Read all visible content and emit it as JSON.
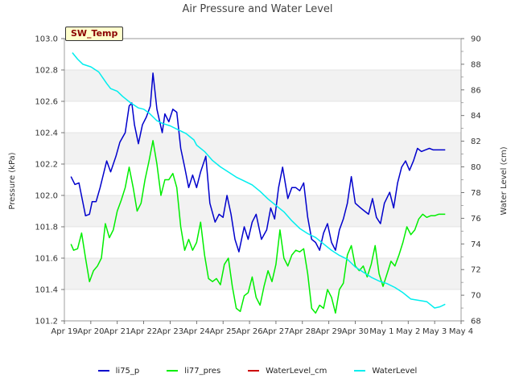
{
  "chart_data": {
    "type": "line",
    "title": "Air Pressure and Water Level",
    "site_label": "SW_Temp",
    "ylabel_left": "Pressure (kPa)",
    "ylabel_right": "Water Level (cm)",
    "ylim_left": [
      101.2,
      103.0
    ],
    "ylim_right": [
      68,
      90
    ],
    "yticks_left": [
      "101.2",
      "101.4",
      "101.6",
      "101.8",
      "102.0",
      "102.2",
      "102.4",
      "102.6",
      "102.8",
      "103.0"
    ],
    "yticks_right": [
      "68",
      "70",
      "72",
      "74",
      "76",
      "78",
      "80",
      "82",
      "84",
      "86",
      "88",
      "90"
    ],
    "xlim": [
      0,
      15
    ],
    "xticks": [
      "Apr 19",
      "Apr 20",
      "Apr 21",
      "Apr 22",
      "Apr 23",
      "Apr 24",
      "Apr 25",
      "Apr 26",
      "Apr 27",
      "Apr 28",
      "Apr 29",
      "Apr 30",
      "May 1",
      "May 2",
      "May 3",
      "May 4"
    ],
    "grid": true,
    "legend_position": "bottom",
    "series": [
      {
        "name": "li75_p",
        "axis": "left",
        "color": "#0000cc",
        "x": [
          0.25,
          0.4,
          0.55,
          0.8,
          0.95,
          1.05,
          1.2,
          1.35,
          1.6,
          1.75,
          1.95,
          2.1,
          2.3,
          2.45,
          2.55,
          2.65,
          2.8,
          2.95,
          3.1,
          3.25,
          3.35,
          3.5,
          3.7,
          3.8,
          3.95,
          4.1,
          4.25,
          4.4,
          4.55,
          4.7,
          4.85,
          5.0,
          5.15,
          5.35,
          5.5,
          5.7,
          5.85,
          6.0,
          6.15,
          6.3,
          6.45,
          6.6,
          6.8,
          6.95,
          7.1,
          7.25,
          7.45,
          7.65,
          7.8,
          7.95,
          8.1,
          8.25,
          8.45,
          8.6,
          8.75,
          8.9,
          9.05,
          9.2,
          9.35,
          9.5,
          9.65,
          9.8,
          9.95,
          10.1,
          10.25,
          10.4,
          10.55,
          10.7,
          10.85,
          11.0,
          11.2,
          11.35,
          11.5,
          11.65,
          11.8,
          11.95,
          12.1,
          12.3,
          12.45,
          12.6,
          12.75,
          12.9,
          13.05,
          13.2,
          13.35,
          13.5,
          13.65,
          13.8,
          13.95,
          14.1,
          14.25,
          14.4
        ],
        "values": [
          102.12,
          102.07,
          102.08,
          101.87,
          101.88,
          101.96,
          101.96,
          102.05,
          102.22,
          102.15,
          102.25,
          102.34,
          102.4,
          102.57,
          102.59,
          102.45,
          102.33,
          102.45,
          102.5,
          102.57,
          102.78,
          102.55,
          102.4,
          102.52,
          102.47,
          102.55,
          102.53,
          102.3,
          102.18,
          102.05,
          102.13,
          102.05,
          102.15,
          102.25,
          101.95,
          101.83,
          101.88,
          101.86,
          102.0,
          101.88,
          101.72,
          101.64,
          101.8,
          101.72,
          101.83,
          101.88,
          101.72,
          101.78,
          101.92,
          101.85,
          102.05,
          102.18,
          101.98,
          102.05,
          102.05,
          102.03,
          102.08,
          101.86,
          101.72,
          101.7,
          101.65,
          101.76,
          101.82,
          101.7,
          101.65,
          101.78,
          101.85,
          101.95,
          102.12,
          101.95,
          101.92,
          101.9,
          101.88,
          101.98,
          101.86,
          101.82,
          101.95,
          102.02,
          101.92,
          102.08,
          102.18,
          102.22,
          102.16,
          102.22,
          102.3,
          102.28,
          102.29,
          102.3,
          102.29,
          102.29,
          102.29,
          102.29
        ]
      },
      {
        "name": "li77_pres",
        "axis": "left",
        "color": "#00ee00",
        "x": [
          0.25,
          0.35,
          0.5,
          0.65,
          0.8,
          0.95,
          1.1,
          1.25,
          1.4,
          1.55,
          1.7,
          1.85,
          2.0,
          2.15,
          2.3,
          2.45,
          2.6,
          2.75,
          2.9,
          3.05,
          3.2,
          3.35,
          3.5,
          3.65,
          3.8,
          3.95,
          4.1,
          4.25,
          4.4,
          4.55,
          4.7,
          4.85,
          5.0,
          5.15,
          5.3,
          5.45,
          5.6,
          5.75,
          5.9,
          6.05,
          6.2,
          6.35,
          6.5,
          6.65,
          6.8,
          6.95,
          7.1,
          7.25,
          7.4,
          7.55,
          7.7,
          7.85,
          8.0,
          8.15,
          8.3,
          8.45,
          8.6,
          8.75,
          8.9,
          9.05,
          9.2,
          9.35,
          9.5,
          9.65,
          9.8,
          9.95,
          10.1,
          10.25,
          10.4,
          10.55,
          10.7,
          10.85,
          11.0,
          11.15,
          11.3,
          11.45,
          11.6,
          11.75,
          11.9,
          12.05,
          12.2,
          12.35,
          12.5,
          12.65,
          12.8,
          12.95,
          13.1,
          13.25,
          13.4,
          13.55,
          13.7,
          13.85,
          14.0,
          14.15,
          14.3,
          14.4
        ],
        "values": [
          101.69,
          101.65,
          101.66,
          101.76,
          101.6,
          101.45,
          101.52,
          101.55,
          101.6,
          101.82,
          101.73,
          101.78,
          101.9,
          101.97,
          102.05,
          102.18,
          102.05,
          101.9,
          101.95,
          102.1,
          102.22,
          102.35,
          102.2,
          102.0,
          102.1,
          102.1,
          102.14,
          102.05,
          101.8,
          101.65,
          101.72,
          101.65,
          101.7,
          101.83,
          101.62,
          101.47,
          101.45,
          101.47,
          101.43,
          101.56,
          101.6,
          101.42,
          101.28,
          101.26,
          101.36,
          101.38,
          101.48,
          101.35,
          101.3,
          101.42,
          101.52,
          101.45,
          101.56,
          101.78,
          101.6,
          101.55,
          101.62,
          101.65,
          101.64,
          101.66,
          101.5,
          101.28,
          101.25,
          101.3,
          101.28,
          101.4,
          101.35,
          101.25,
          101.4,
          101.44,
          101.62,
          101.68,
          101.55,
          101.52,
          101.55,
          101.48,
          101.56,
          101.68,
          101.5,
          101.42,
          101.5,
          101.58,
          101.55,
          101.62,
          101.7,
          101.8,
          101.75,
          101.78,
          101.85,
          101.88,
          101.86,
          101.87,
          101.87,
          101.88,
          101.88,
          101.88
        ]
      },
      {
        "name": "WaterLevel_cm",
        "axis": "right",
        "color": "#cc0000",
        "x": [],
        "values": []
      },
      {
        "name": "WaterLevel",
        "axis": "right",
        "color": "#00eeee",
        "x": [
          0.3,
          0.5,
          0.7,
          1.0,
          1.3,
          1.6,
          1.75,
          2.0,
          2.2,
          2.5,
          2.8,
          3.0,
          3.2,
          3.5,
          3.7,
          4.0,
          4.3,
          4.6,
          4.9,
          5.0,
          5.3,
          5.6,
          5.9,
          6.2,
          6.5,
          6.8,
          7.1,
          7.4,
          7.7,
          8.0,
          8.3,
          8.6,
          8.9,
          9.2,
          9.5,
          9.8,
          10.1,
          10.4,
          10.7,
          11.0,
          11.3,
          11.6,
          11.9,
          12.2,
          12.5,
          12.8,
          13.1,
          13.4,
          13.7,
          14.0,
          14.2,
          14.4
        ],
        "values": [
          88.9,
          88.4,
          88.0,
          87.8,
          87.4,
          86.5,
          86.1,
          85.9,
          85.5,
          85.0,
          84.6,
          84.5,
          84.2,
          83.6,
          83.4,
          83.2,
          82.9,
          82.6,
          82.1,
          81.7,
          81.2,
          80.5,
          80.0,
          79.6,
          79.2,
          78.9,
          78.6,
          78.1,
          77.5,
          77.0,
          76.5,
          75.8,
          75.2,
          74.8,
          74.5,
          74.0,
          73.5,
          73.1,
          72.8,
          72.2,
          71.8,
          71.4,
          71.1,
          70.9,
          70.6,
          70.2,
          69.7,
          69.6,
          69.5,
          69.0,
          69.1,
          69.3
        ]
      }
    ]
  }
}
